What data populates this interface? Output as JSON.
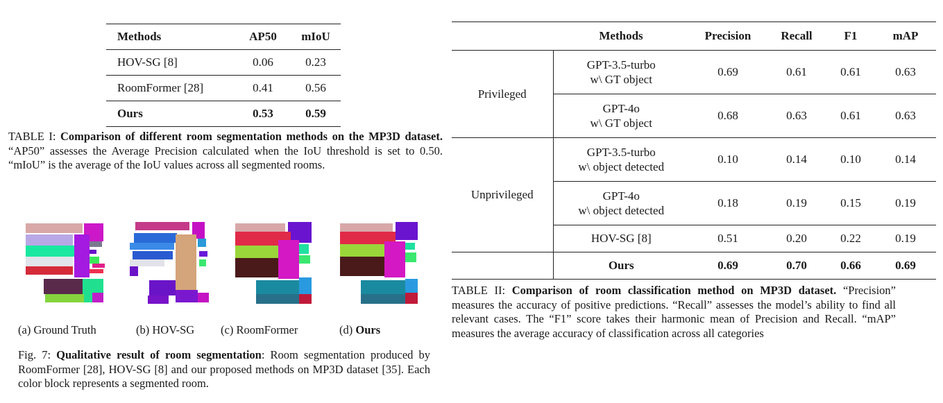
{
  "table1": {
    "headers": [
      "Methods",
      "AP50",
      "mIoU"
    ],
    "rows": [
      [
        "HOV-SG [8]",
        "0.06",
        "0.23"
      ],
      [
        "RoomFormer [28]",
        "0.41",
        "0.56"
      ],
      [
        "Ours",
        "0.53",
        "0.59"
      ]
    ],
    "caption_label": "TABLE I:",
    "caption_bold": "Comparison of different room segmentation methods on the MP3D dataset.",
    "caption_rest": "“AP50” assesses the Average Precision calculated when the IoU threshold is set to 0.50. “mIoU” is the average of the IoU values across all segmented rooms."
  },
  "figure7": {
    "sublabels": [
      "(a) Ground Truth",
      "(b) HOV-SG",
      "(c) RoomFormer",
      "(d) "
    ],
    "ours_label": "Ours",
    "caption_label": "Fig. 7:",
    "caption_bold": "Qualitative result of room segmentation",
    "caption_rest": ": Room segmentation produced by RoomFormer [28], HOV-SG [8] and our proposed methods on MP3D dataset [35]. Each color block represents a segmented room."
  },
  "table2": {
    "headers": [
      "Methods",
      "Precision",
      "Recall",
      "F1",
      "mAP"
    ],
    "groups": [
      "Privileged",
      "Unprivileged"
    ],
    "rows": [
      {
        "m1": "GPT-3.5-turbo",
        "m2": "w\\ GT object",
        "v": [
          "0.69",
          "0.61",
          "0.61",
          "0.63"
        ]
      },
      {
        "m1": "GPT-4o",
        "m2": "w\\ GT object",
        "v": [
          "0.68",
          "0.63",
          "0.61",
          "0.63"
        ]
      },
      {
        "m1": "GPT-3.5-turbo",
        "m2": "w\\ object detected",
        "v": [
          "0.10",
          "0.14",
          "0.10",
          "0.14"
        ]
      },
      {
        "m1": "GPT-4o",
        "m2": "w\\ object detected",
        "v": [
          "0.18",
          "0.19",
          "0.15",
          "0.19"
        ]
      },
      {
        "m1": "HOV-SG [8]",
        "v": [
          "0.51",
          "0.20",
          "0.22",
          "0.19"
        ]
      },
      {
        "m1": "Ours",
        "v": [
          "0.69",
          "0.70",
          "0.66",
          "0.69"
        ]
      }
    ],
    "caption_label": "TABLE II:",
    "caption_bold": "Comparison of room classification method on MP3D dataset.",
    "caption_rest": "“Precision” measures the accuracy of positive predictions. “Recall” assesses the model’s ability to find all relevant cases. The “F1” score takes their harmonic mean of Precision and Recall. “mAP” measures the average accuracy of classification across all categories"
  }
}
